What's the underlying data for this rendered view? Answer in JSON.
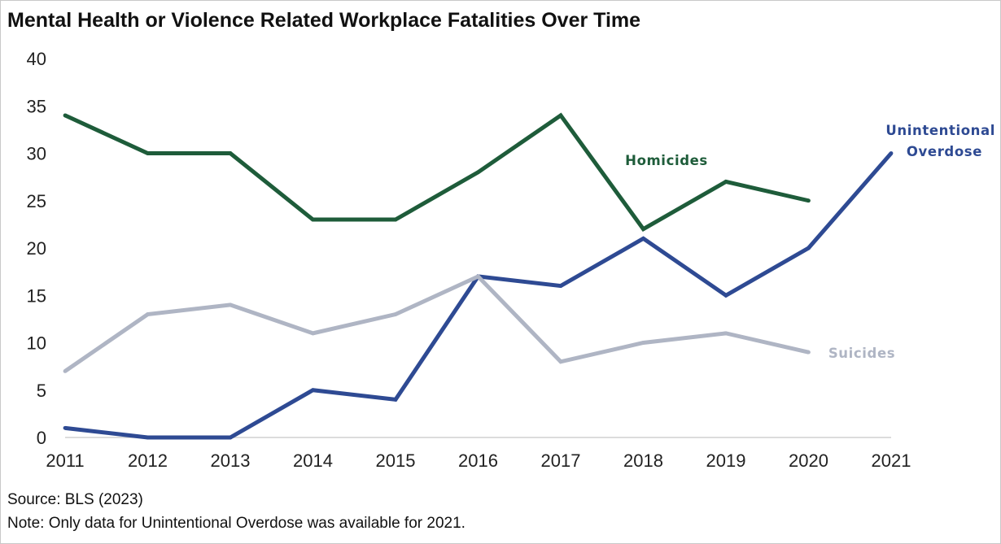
{
  "chart_data": {
    "type": "line",
    "title": "Mental Health or Violence Related Workplace Fatalities Over Time",
    "categories": [
      "2011",
      "2012",
      "2013",
      "2014",
      "2015",
      "2016",
      "2017",
      "2018",
      "2019",
      "2020",
      "2021"
    ],
    "ylim": [
      0,
      40
    ],
    "yticks": [
      "0",
      "5",
      "10",
      "15",
      "20",
      "25",
      "30",
      "35",
      "40"
    ],
    "grid": false,
    "series": [
      {
        "name": "Homicides",
        "color": "#1e5c3a",
        "values": [
          34,
          30,
          30,
          23,
          23,
          28,
          34,
          22,
          27,
          25,
          null
        ]
      },
      {
        "name": "Unintentional Overdose",
        "color": "#2e4a93",
        "values": [
          1,
          0,
          0,
          5,
          4,
          17,
          16,
          21,
          15,
          20,
          30
        ]
      },
      {
        "name": "Suicides",
        "color": "#afb5c4",
        "values": [
          7,
          13,
          14,
          11,
          13,
          17,
          8,
          10,
          11,
          9,
          null
        ]
      }
    ],
    "labels": {
      "homicides": "Homicides",
      "overdose_line1": "Unintentional",
      "overdose_line2": "Overdose",
      "suicides": "Suicides"
    }
  },
  "footer": {
    "source": "Source: BLS (2023)",
    "note": "Note: Only data for Unintentional Overdose was available for 2021."
  }
}
